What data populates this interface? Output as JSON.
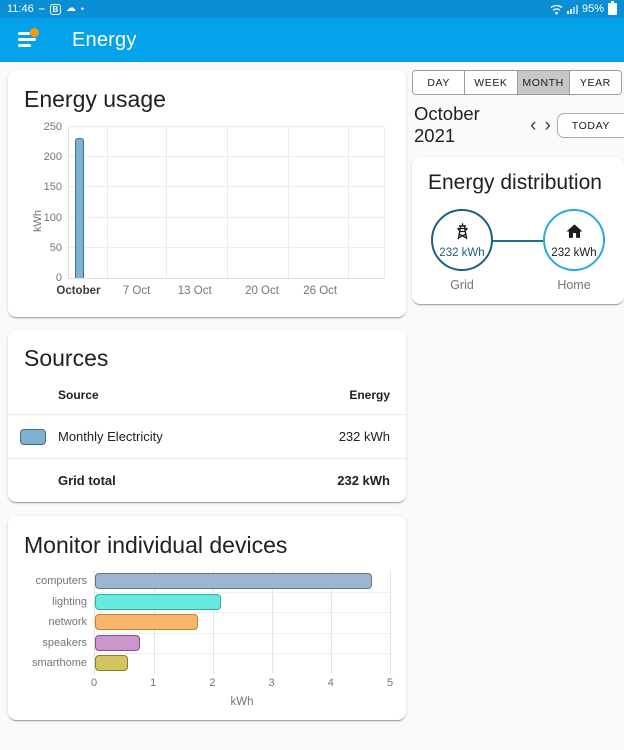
{
  "status_bar": {
    "time": "11:46",
    "battery_percent": "95%",
    "left_icons": [
      "minus-icon",
      "b-app-icon",
      "cloud-icon",
      "notification-dot"
    ],
    "right_icons": [
      "wifi-icon",
      "signal-icon",
      "battery-icon"
    ]
  },
  "app_bar": {
    "title": "Energy"
  },
  "period_tabs": {
    "options": [
      "DAY",
      "WEEK",
      "MONTH",
      "YEAR"
    ],
    "selected": "MONTH"
  },
  "date_nav": {
    "label": "October 2021",
    "prev": "‹",
    "next": "›",
    "today_label": "TODAY"
  },
  "usage_card": {
    "title": "Energy usage"
  },
  "distribution_card": {
    "title": "Energy distribution",
    "nodes": [
      {
        "id": "grid",
        "label": "Grid",
        "value": "232 kWh",
        "icon": "transmission-tower-icon",
        "color": "#1d5f7f"
      },
      {
        "id": "home",
        "label": "Home",
        "value": "232 kWh",
        "icon": "home-icon",
        "color": "#29a8e0"
      }
    ]
  },
  "sources_card": {
    "title": "Sources",
    "columns": [
      "Source",
      "Energy"
    ],
    "rows": [
      {
        "name": "Monthly Electricity",
        "value": "232 kWh",
        "swatch_fill": "#7fb2d1",
        "swatch_border": "#41708e"
      }
    ],
    "total": {
      "name": "Grid total",
      "value": "232 kWh"
    }
  },
  "devices_card": {
    "title": "Monitor individual devices"
  },
  "colors": {
    "app_bar": "#05a2ec",
    "status_bar": "#0a8fd4",
    "grid_node": "#1d5f7f",
    "home_node": "#29a8e0",
    "usage_bar_fill": "#7fb2d1",
    "usage_bar_border": "#41708e"
  },
  "chart_data": [
    {
      "id": "usage",
      "type": "bar",
      "title": "Energy usage",
      "ylabel": "kWh",
      "ylim": [
        0,
        250
      ],
      "yticks": [
        0,
        50,
        100,
        150,
        200,
        250
      ],
      "x_range": "October 2021, days 1-31",
      "xticklabels": [
        {
          "label": "October",
          "pos_pct": 3.3,
          "bold": true
        },
        {
          "label": "7 Oct",
          "pos_pct": 21.7,
          "bold": false
        },
        {
          "label": "13 Oct",
          "pos_pct": 40.1,
          "bold": false
        },
        {
          "label": "20 Oct",
          "pos_pct": 61.4,
          "bold": false
        },
        {
          "label": "26 Oct",
          "pos_pct": 79.8,
          "bold": false
        }
      ],
      "vgrid_pct": [
        12.2,
        30.9,
        50.1,
        69.4,
        88.7,
        100
      ],
      "series": [
        {
          "name": "Monthly Electricity",
          "bars": [
            {
              "x": "1 Oct",
              "value": 232,
              "pos_pct": 3.3,
              "fill": "#7fb2d1",
              "border": "#41708e"
            }
          ]
        }
      ],
      "grid": true,
      "legend": false
    },
    {
      "id": "devices",
      "type": "bar",
      "orientation": "horizontal",
      "title": "Monitor individual devices",
      "xlabel": "kWh",
      "xlim": [
        0,
        5
      ],
      "xticks": [
        0,
        1,
        2,
        3,
        4,
        5
      ],
      "categories": [
        "computers",
        "lighting",
        "network",
        "speakers",
        "smarthome"
      ],
      "values": [
        4.7,
        2.13,
        1.75,
        0.77,
        0.56
      ],
      "bar_colors": [
        {
          "fill": "#9db5cd",
          "border": "#5c7892"
        },
        {
          "fill": "#66e9de",
          "border": "#1fb3a8"
        },
        {
          "fill": "#f9b46e",
          "border": "#cc7f2f"
        },
        {
          "fill": "#ca97ca",
          "border": "#8e4a8e"
        },
        {
          "fill": "#d2c461",
          "border": "#8b7d26"
        }
      ],
      "grid": true,
      "legend": false
    }
  ]
}
